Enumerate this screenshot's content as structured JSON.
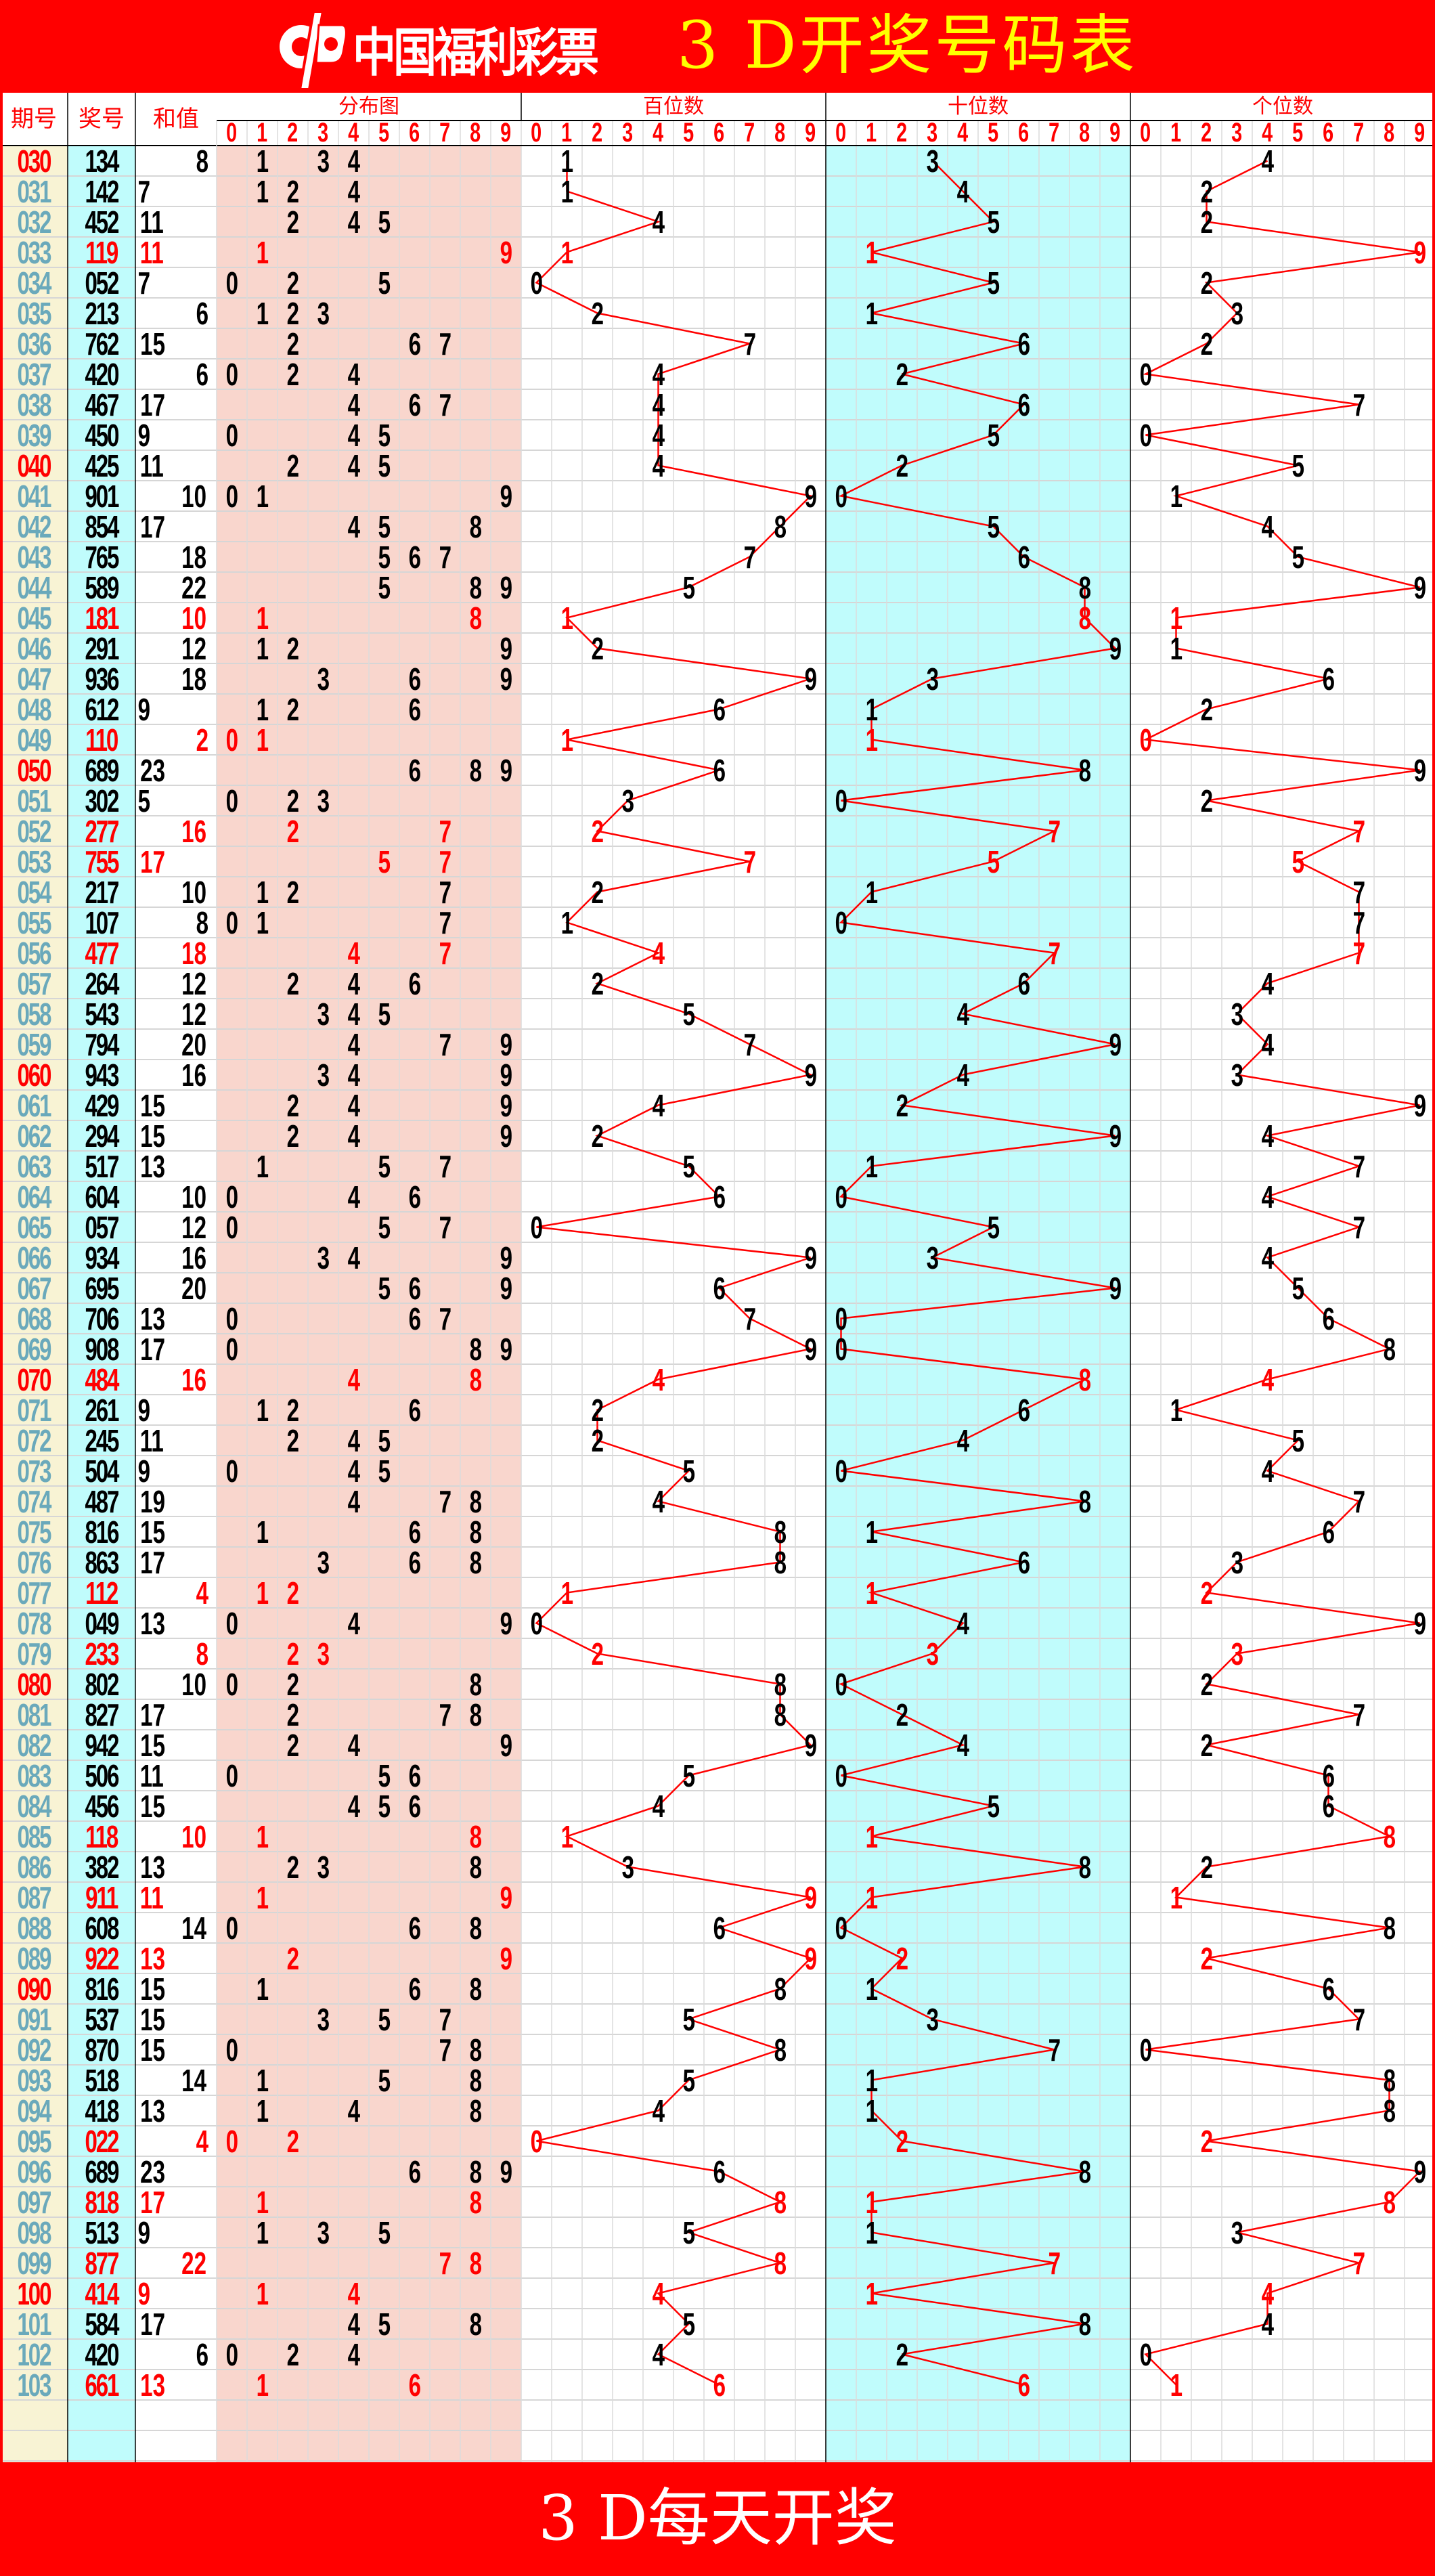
{
  "header": {
    "logo_text": "中国福利彩票",
    "title": "3 D开奖号码表"
  },
  "columns": {
    "period": "期号",
    "number": "奖号",
    "sum": "和值",
    "distribution": "分布图",
    "hundreds": "百位数",
    "tens": "十位数",
    "units": "个位数",
    "digits": [
      "0",
      "1",
      "2",
      "3",
      "4",
      "5",
      "6",
      "7",
      "8",
      "9"
    ]
  },
  "footer": {
    "text": "3 D每天开奖"
  },
  "colors": {
    "banner": "#ff0000",
    "title": "#ffff00",
    "highlight": "#ff0000",
    "period_text": "#6aa9bb",
    "period_bg": "#f8f3d4",
    "number_bg": "#c0fcfc",
    "distribution_bg": "#f9d6cd",
    "tens_bg": "#c0fcfc",
    "trend_line": "#ff0000"
  },
  "rows": [
    {
      "period": "030",
      "number": "134",
      "sum": "8"
    },
    {
      "period": "031",
      "number": "142",
      "sum": "7"
    },
    {
      "period": "032",
      "number": "452",
      "sum": "11"
    },
    {
      "period": "033",
      "number": "119",
      "sum": "11"
    },
    {
      "period": "034",
      "number": "052",
      "sum": "7"
    },
    {
      "period": "035",
      "number": "213",
      "sum": "6"
    },
    {
      "period": "036",
      "number": "762",
      "sum": "15"
    },
    {
      "period": "037",
      "number": "420",
      "sum": "6"
    },
    {
      "period": "038",
      "number": "467",
      "sum": "17"
    },
    {
      "period": "039",
      "number": "450",
      "sum": "9"
    },
    {
      "period": "040",
      "number": "425",
      "sum": "11"
    },
    {
      "period": "041",
      "number": "901",
      "sum": "10"
    },
    {
      "period": "042",
      "number": "854",
      "sum": "17"
    },
    {
      "period": "043",
      "number": "765",
      "sum": "18"
    },
    {
      "period": "044",
      "number": "589",
      "sum": "22"
    },
    {
      "period": "045",
      "number": "181",
      "sum": "10"
    },
    {
      "period": "046",
      "number": "291",
      "sum": "12"
    },
    {
      "period": "047",
      "number": "936",
      "sum": "18"
    },
    {
      "period": "048",
      "number": "612",
      "sum": "9"
    },
    {
      "period": "049",
      "number": "110",
      "sum": "2"
    },
    {
      "period": "050",
      "number": "689",
      "sum": "23"
    },
    {
      "period": "051",
      "number": "302",
      "sum": "5"
    },
    {
      "period": "052",
      "number": "277",
      "sum": "16"
    },
    {
      "period": "053",
      "number": "755",
      "sum": "17"
    },
    {
      "period": "054",
      "number": "217",
      "sum": "10"
    },
    {
      "period": "055",
      "number": "107",
      "sum": "8"
    },
    {
      "period": "056",
      "number": "477",
      "sum": "18"
    },
    {
      "period": "057",
      "number": "264",
      "sum": "12"
    },
    {
      "period": "058",
      "number": "543",
      "sum": "12"
    },
    {
      "period": "059",
      "number": "794",
      "sum": "20"
    },
    {
      "period": "060",
      "number": "943",
      "sum": "16"
    },
    {
      "period": "061",
      "number": "429",
      "sum": "15"
    },
    {
      "period": "062",
      "number": "294",
      "sum": "15"
    },
    {
      "period": "063",
      "number": "517",
      "sum": "13"
    },
    {
      "period": "064",
      "number": "604",
      "sum": "10"
    },
    {
      "period": "065",
      "number": "057",
      "sum": "12"
    },
    {
      "period": "066",
      "number": "934",
      "sum": "16"
    },
    {
      "period": "067",
      "number": "695",
      "sum": "20"
    },
    {
      "period": "068",
      "number": "706",
      "sum": "13"
    },
    {
      "period": "069",
      "number": "908",
      "sum": "17"
    },
    {
      "period": "070",
      "number": "484",
      "sum": "16"
    },
    {
      "period": "071",
      "number": "261",
      "sum": "9"
    },
    {
      "period": "072",
      "number": "245",
      "sum": "11"
    },
    {
      "period": "073",
      "number": "504",
      "sum": "9"
    },
    {
      "period": "074",
      "number": "487",
      "sum": "19"
    },
    {
      "period": "075",
      "number": "816",
      "sum": "15"
    },
    {
      "period": "076",
      "number": "863",
      "sum": "17"
    },
    {
      "period": "077",
      "number": "112",
      "sum": "4"
    },
    {
      "period": "078",
      "number": "049",
      "sum": "13"
    },
    {
      "period": "079",
      "number": "233",
      "sum": "8"
    },
    {
      "period": "080",
      "number": "802",
      "sum": "10"
    },
    {
      "period": "081",
      "number": "827",
      "sum": "17"
    },
    {
      "period": "082",
      "number": "942",
      "sum": "15"
    },
    {
      "period": "083",
      "number": "506",
      "sum": "11"
    },
    {
      "period": "084",
      "number": "456",
      "sum": "15"
    },
    {
      "period": "085",
      "number": "118",
      "sum": "10"
    },
    {
      "period": "086",
      "number": "382",
      "sum": "13"
    },
    {
      "period": "087",
      "number": "911",
      "sum": "11"
    },
    {
      "period": "088",
      "number": "608",
      "sum": "14"
    },
    {
      "period": "089",
      "number": "922",
      "sum": "13"
    },
    {
      "period": "090",
      "number": "816",
      "sum": "15"
    },
    {
      "period": "091",
      "number": "537",
      "sum": "15"
    },
    {
      "period": "092",
      "number": "870",
      "sum": "15"
    },
    {
      "period": "093",
      "number": "518",
      "sum": "14"
    },
    {
      "period": "094",
      "number": "418",
      "sum": "13"
    },
    {
      "period": "095",
      "number": "022",
      "sum": "4"
    },
    {
      "period": "096",
      "number": "689",
      "sum": "23"
    },
    {
      "period": "097",
      "number": "818",
      "sum": "17"
    },
    {
      "period": "098",
      "number": "513",
      "sum": "9"
    },
    {
      "period": "099",
      "number": "877",
      "sum": "22"
    },
    {
      "period": "100",
      "number": "414",
      "sum": "9"
    },
    {
      "period": "101",
      "number": "584",
      "sum": "17"
    },
    {
      "period": "102",
      "number": "420",
      "sum": "6"
    },
    {
      "period": "103",
      "number": "661",
      "sum": "13"
    }
  ]
}
